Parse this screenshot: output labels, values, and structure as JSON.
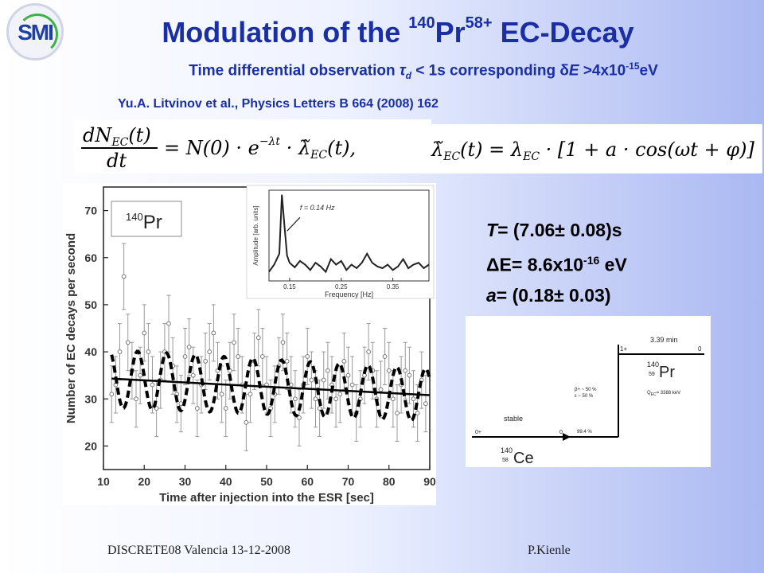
{
  "logo": {
    "text": "SMI"
  },
  "title": {
    "main": "Modulation of the ",
    "mass": "140",
    "element": "Pr",
    "charge": "58+",
    "rest": " EC-Decay"
  },
  "subtitle": {
    "pre": "Time differential observation ",
    "tau": "τ",
    "tau_sub": "d",
    "mid": " < 1s corresponding ",
    "delta": "δ",
    "e": "E",
    "post": " >4x10",
    "exp": "-15",
    "unit": "eV"
  },
  "citation": "Yu.A. Litvinov et al., Physics Letters B 664 (2008) 162",
  "equation1": {
    "lhs_num": "dN",
    "lhs_num_sub": "EC",
    "lhs_num_arg": "(t)",
    "lhs_den": "dt",
    "rhs": "= N(0) · e",
    "rhs_exp": "−λt",
    "lambda": "λ̃",
    "lambda_sub": "EC",
    "lambda_arg": "(t),"
  },
  "equation2": {
    "lhs": "λ̃",
    "lhs_sub": "EC",
    "lhs_arg": "(t) = λ",
    "rhs_sub": "EC",
    "rhs_rest": " · [1 + a · cos(ωt + φ)]"
  },
  "results": [
    {
      "label": "T",
      "text": "= (7.06± 0.08)s"
    },
    {
      "label": "ΔE",
      "text": "= 8.6x10",
      "exp": "-16",
      "unit": " eV"
    },
    {
      "label": "a",
      "text": "= (0.18± 0.03)"
    }
  ],
  "footer": {
    "left": "DISCRETE08  Valencia 13-12-2008",
    "right": "P.Kienle"
  },
  "decay_scheme": {
    "halflife": "3.39 min",
    "parent_spin": "1+",
    "parent_energy": "0",
    "parent_mass": "140",
    "parent_z": "59",
    "parent_symbol": "Pr",
    "branch_bplus": "β+ ~ 50 %",
    "branch_ec": "ε ~ 50 %",
    "q_value": "Q",
    "q_sub": "EC",
    "q_rest": "= 3388 keV",
    "stable": "stable",
    "daughter_spin": "0+",
    "daughter_energy": "0",
    "daughter_branch": "99.4 %",
    "daughter_mass": "140",
    "daughter_z": "58",
    "daughter_symbol": "Ce"
  },
  "chart_data": [
    {
      "type": "scatter",
      "title": "",
      "legend_text": "140Pr",
      "legend_mass": "140",
      "legend_symbol": "Pr",
      "xlabel": "Time after injection into the ESR [sec]",
      "ylabel": "Number of EC decays per second",
      "xlim": [
        10,
        90
      ],
      "ylim": [
        15,
        75
      ],
      "xticks": [
        "10",
        "20",
        "30",
        "40",
        "50",
        "60",
        "70",
        "80",
        "90"
      ],
      "yticks": [
        "20",
        "30",
        "40",
        "50",
        "60",
        "70"
      ],
      "series": [
        {
          "style": "points",
          "x": [
            12,
            13,
            14,
            15,
            16,
            17,
            18,
            19,
            20,
            21,
            22,
            23,
            24,
            25,
            26,
            27,
            28,
            29,
            30,
            31,
            32,
            33,
            34,
            35,
            36,
            37,
            38,
            39,
            40,
            41,
            42,
            43,
            44,
            45,
            46,
            47,
            48,
            49,
            50,
            51,
            52,
            53,
            54,
            55,
            56,
            57,
            58,
            59,
            60,
            61,
            62,
            63,
            64,
            65,
            66,
            67,
            68,
            69,
            70,
            71,
            72,
            73,
            74,
            75,
            76,
            77,
            78,
            79,
            80,
            81,
            82,
            83,
            84,
            85,
            86,
            87,
            88,
            89
          ],
          "y": [
            31,
            33,
            40,
            56,
            42,
            36,
            30,
            35,
            44,
            40,
            33,
            28,
            34,
            40,
            46,
            37,
            31,
            29,
            39,
            41,
            35,
            28,
            33,
            38,
            40,
            44,
            36,
            31,
            28,
            36,
            42,
            39,
            33,
            25,
            31,
            38,
            43,
            39,
            33,
            28,
            31,
            37,
            42,
            38,
            33,
            30,
            26,
            33,
            39,
            34,
            30,
            28,
            34,
            36,
            33,
            30,
            31,
            38,
            35,
            33,
            27,
            30,
            35,
            40,
            36,
            30,
            32,
            39,
            36,
            30,
            27,
            33,
            36,
            35,
            30,
            27,
            34,
            29
          ],
          "err": [
            6,
            6,
            6,
            7,
            6,
            6,
            6,
            6,
            6,
            6,
            6,
            6,
            6,
            6,
            6,
            6,
            6,
            6,
            6,
            6,
            6,
            6,
            6,
            6,
            6,
            6,
            6,
            6,
            6,
            6,
            6,
            6,
            6,
            6,
            6,
            6,
            6,
            6,
            6,
            6,
            6,
            6,
            6,
            6,
            6,
            6,
            6,
            6,
            6,
            6,
            6,
            6,
            6,
            6,
            6,
            6,
            6,
            6,
            6,
            6,
            6,
            6,
            6,
            6,
            6,
            6,
            6,
            6,
            6,
            6,
            6,
            6,
            6,
            6,
            6,
            6,
            6,
            6
          ]
        },
        {
          "style": "dashed-fit",
          "amplitude": 0.18,
          "period": 7.06
        },
        {
          "style": "exponential-fit",
          "x": [
            12,
            90
          ],
          "y": [
            34.3,
            30.8
          ]
        }
      ]
    },
    {
      "type": "line",
      "title": "",
      "xlabel": "Frequency [Hz]",
      "ylabel": "Amplitude [arb. units]",
      "xlim": [
        0.11,
        0.42
      ],
      "ylim": [
        0,
        1
      ],
      "xticks": [
        "0.15",
        "0.25",
        "0.35"
      ],
      "annotation": "f = 0.14 Hz",
      "x": [
        0.11,
        0.12,
        0.13,
        0.135,
        0.14,
        0.145,
        0.15,
        0.16,
        0.17,
        0.18,
        0.19,
        0.2,
        0.21,
        0.22,
        0.23,
        0.24,
        0.25,
        0.26,
        0.27,
        0.28,
        0.29,
        0.3,
        0.31,
        0.32,
        0.33,
        0.34,
        0.35,
        0.36,
        0.37,
        0.38,
        0.39,
        0.4,
        0.41,
        0.42
      ],
      "y": [
        0.1,
        0.18,
        0.3,
        0.95,
        0.6,
        0.28,
        0.2,
        0.15,
        0.22,
        0.18,
        0.12,
        0.2,
        0.16,
        0.1,
        0.24,
        0.18,
        0.22,
        0.12,
        0.18,
        0.14,
        0.2,
        0.3,
        0.2,
        0.16,
        0.14,
        0.18,
        0.12,
        0.16,
        0.24,
        0.14,
        0.18,
        0.2,
        0.14,
        0.18
      ]
    }
  ]
}
